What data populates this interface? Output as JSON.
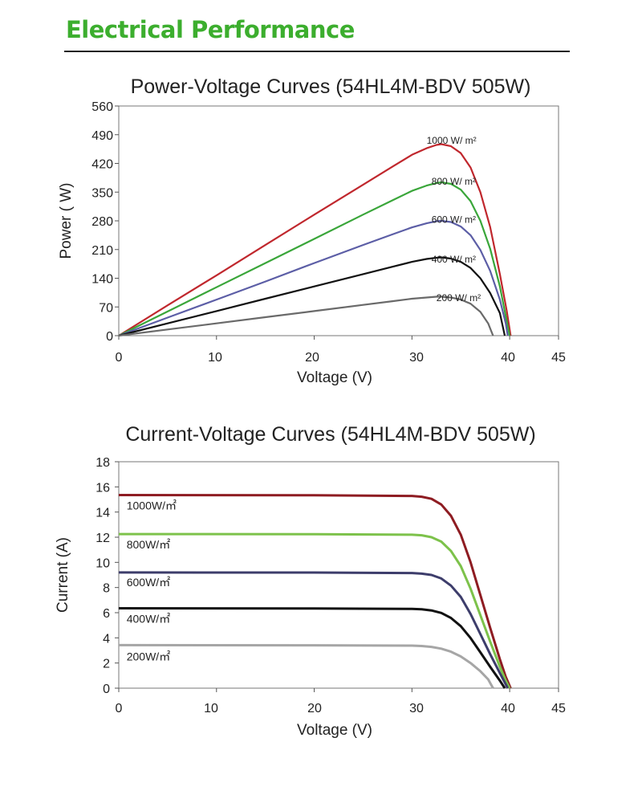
{
  "page": {
    "heading": "Electrical Performance",
    "heading_color": "#3cae2e"
  },
  "chart_data": [
    {
      "type": "line",
      "title": "Power-Voltage Curves (54HL4M-BDV 505W)",
      "xlabel": "Voltage (V)",
      "ylabel": "Power ( W)",
      "xlim": [
        0,
        45
      ],
      "ylim": [
        0,
        560
      ],
      "xticks": [
        0,
        10,
        20,
        30,
        40,
        45
      ],
      "yticks": [
        0,
        70,
        140,
        210,
        280,
        350,
        420,
        490,
        560
      ],
      "grid": false,
      "legend": "inline labels near curve peaks",
      "series": [
        {
          "name": "1000 W/ m²",
          "color": "#c0272d",
          "label_at": [
            31.5,
            468
          ],
          "points": [
            [
              0,
              0
            ],
            [
              5,
              74
            ],
            [
              10,
              147
            ],
            [
              15,
              221
            ],
            [
              20,
              295
            ],
            [
              25,
              368
            ],
            [
              28,
              412
            ],
            [
              30,
              441
            ],
            [
              31.5,
              457
            ],
            [
              32.5,
              465
            ],
            [
              33,
              467
            ],
            [
              34,
              462
            ],
            [
              35,
              445
            ],
            [
              36,
              410
            ],
            [
              37,
              350
            ],
            [
              38,
              265
            ],
            [
              39,
              150
            ],
            [
              39.7,
              60
            ],
            [
              40.1,
              0
            ]
          ]
        },
        {
          "name": "800 W/ m²",
          "color": "#3aa63a",
          "label_at": [
            32,
            368
          ],
          "points": [
            [
              0,
              0
            ],
            [
              5,
              59
            ],
            [
              10,
              118
            ],
            [
              15,
              177
            ],
            [
              20,
              236
            ],
            [
              25,
              295
            ],
            [
              28,
              330
            ],
            [
              30,
              353
            ],
            [
              31.5,
              366
            ],
            [
              32.5,
              372
            ],
            [
              33,
              374
            ],
            [
              34,
              370
            ],
            [
              35,
              356
            ],
            [
              36,
              328
            ],
            [
              37,
              280
            ],
            [
              38,
              212
            ],
            [
              39,
              120
            ],
            [
              39.6,
              48
            ],
            [
              40,
              0
            ]
          ]
        },
        {
          "name": "600 W/ m²",
          "color": "#5c5ea6",
          "label_at": [
            32,
            275
          ],
          "points": [
            [
              0,
              0
            ],
            [
              5,
              44
            ],
            [
              10,
              88
            ],
            [
              15,
              132
            ],
            [
              20,
              177
            ],
            [
              25,
              221
            ],
            [
              28,
              247
            ],
            [
              30,
              264
            ],
            [
              31.5,
              274
            ],
            [
              32.5,
              279
            ],
            [
              33,
              280
            ],
            [
              34,
              277
            ],
            [
              35,
              266
            ],
            [
              36,
              245
            ],
            [
              37,
              209
            ],
            [
              38,
              158
            ],
            [
              39,
              88
            ],
            [
              39.6,
              30
            ],
            [
              39.8,
              0
            ]
          ]
        },
        {
          "name": "400 W/ m²",
          "color": "#111111",
          "label_at": [
            32,
            178
          ],
          "points": [
            [
              0,
              0
            ],
            [
              5,
              30
            ],
            [
              10,
              60
            ],
            [
              15,
              90
            ],
            [
              20,
              120
            ],
            [
              25,
              150
            ],
            [
              28,
              168
            ],
            [
              30,
              180
            ],
            [
              31.5,
              187
            ],
            [
              32.5,
              190
            ],
            [
              33,
              191
            ],
            [
              34,
              188
            ],
            [
              35,
              180
            ],
            [
              36,
              165
            ],
            [
              37,
              140
            ],
            [
              38,
              104
            ],
            [
              39,
              55
            ],
            [
              39.5,
              0
            ]
          ]
        },
        {
          "name": "200 W/ m²",
          "color": "#6a6a6a",
          "label_at": [
            32.5,
            84
          ],
          "points": [
            [
              0,
              0
            ],
            [
              5,
              15
            ],
            [
              10,
              30
            ],
            [
              15,
              45
            ],
            [
              20,
              60
            ],
            [
              25,
              75
            ],
            [
              28,
              84
            ],
            [
              30,
              90
            ],
            [
              31.5,
              93
            ],
            [
              32.5,
              95
            ],
            [
              33,
              95
            ],
            [
              34,
              93
            ],
            [
              35,
              88
            ],
            [
              36,
              78
            ],
            [
              37,
              58
            ],
            [
              37.8,
              30
            ],
            [
              38.3,
              0
            ]
          ]
        }
      ]
    },
    {
      "type": "line",
      "title": "Current-Voltage Curves (54HL4M-BDV 505W)",
      "xlabel": "Voltage (V)",
      "ylabel": "Current (A)",
      "xlim": [
        0,
        45
      ],
      "ylim": [
        0,
        18
      ],
      "xticks": [
        0,
        10,
        20,
        30,
        40,
        45
      ],
      "yticks": [
        0,
        2,
        4,
        6,
        8,
        10,
        12,
        14,
        16,
        18
      ],
      "grid": false,
      "legend": "inline labels below each curve at left",
      "series": [
        {
          "name": "1000W/㎡",
          "color": "#8e1c22",
          "label_at": [
            0.8,
            14.2
          ],
          "points": [
            [
              0,
              15.35
            ],
            [
              20,
              15.33
            ],
            [
              30,
              15.28
            ],
            [
              31,
              15.22
            ],
            [
              32,
              15.05
            ],
            [
              33,
              14.6
            ],
            [
              34,
              13.7
            ],
            [
              35,
              12.2
            ],
            [
              36,
              10.0
            ],
            [
              37,
              7.4
            ],
            [
              38,
              4.8
            ],
            [
              39,
              2.3
            ],
            [
              39.6,
              0.9
            ],
            [
              40.1,
              0
            ]
          ]
        },
        {
          "name": "800W/㎡",
          "color": "#7dc24b",
          "label_at": [
            0.8,
            11.1
          ],
          "points": [
            [
              0,
              12.25
            ],
            [
              20,
              12.24
            ],
            [
              30,
              12.2
            ],
            [
              31,
              12.15
            ],
            [
              32,
              12.0
            ],
            [
              33,
              11.65
            ],
            [
              34,
              10.9
            ],
            [
              35,
              9.7
            ],
            [
              36,
              7.9
            ],
            [
              37,
              5.8
            ],
            [
              38,
              3.7
            ],
            [
              39,
              1.7
            ],
            [
              39.6,
              0.6
            ],
            [
              40,
              0
            ]
          ]
        },
        {
          "name": "600W/㎡",
          "color": "#3d3d6b",
          "label_at": [
            0.8,
            8.1
          ],
          "points": [
            [
              0,
              9.2
            ],
            [
              20,
              9.19
            ],
            [
              30,
              9.15
            ],
            [
              31,
              9.1
            ],
            [
              32,
              9.0
            ],
            [
              33,
              8.72
            ],
            [
              34,
              8.15
            ],
            [
              35,
              7.25
            ],
            [
              36,
              5.9
            ],
            [
              37,
              4.3
            ],
            [
              38,
              2.7
            ],
            [
              39,
              1.2
            ],
            [
              39.8,
              0
            ]
          ]
        },
        {
          "name": "400W/㎡",
          "color": "#111111",
          "label_at": [
            0.8,
            5.2
          ],
          "points": [
            [
              0,
              6.35
            ],
            [
              20,
              6.34
            ],
            [
              30,
              6.3
            ],
            [
              31,
              6.27
            ],
            [
              32,
              6.18
            ],
            [
              33,
              5.98
            ],
            [
              34,
              5.58
            ],
            [
              35,
              4.93
            ],
            [
              36,
              3.98
            ],
            [
              37,
              2.85
            ],
            [
              38,
              1.7
            ],
            [
              39,
              0.6
            ],
            [
              39.5,
              0
            ]
          ]
        },
        {
          "name": "200W/㎡",
          "color": "#a6a6a6",
          "label_at": [
            0.8,
            2.2
          ],
          "points": [
            [
              0,
              3.42
            ],
            [
              20,
              3.41
            ],
            [
              30,
              3.38
            ],
            [
              31,
              3.35
            ],
            [
              32,
              3.28
            ],
            [
              33,
              3.14
            ],
            [
              34,
              2.9
            ],
            [
              35,
              2.52
            ],
            [
              36,
              2.0
            ],
            [
              37,
              1.35
            ],
            [
              37.8,
              0.7
            ],
            [
              38.3,
              0
            ]
          ]
        }
      ]
    }
  ]
}
